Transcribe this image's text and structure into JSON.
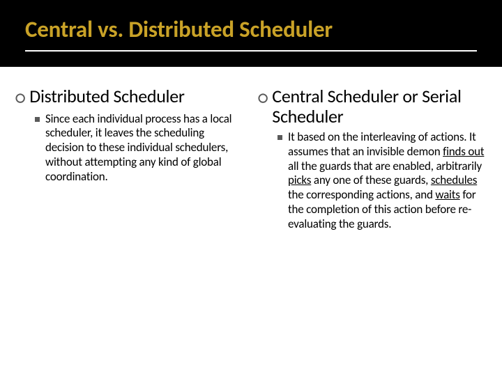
{
  "title": "Central vs. Distributed Scheduler",
  "left": {
    "heading": "Distributed Scheduler",
    "body_plain": "Since each individual process has a local scheduler, it leaves the scheduling decision to these individual schedulers, without attempting any kind of global coordination."
  },
  "right": {
    "heading": "Central Scheduler or Serial Scheduler",
    "body_segments": [
      {
        "t": "It based on the interleaving of actions. It assumes that an invisible demon "
      },
      {
        "t": "finds out",
        "u": true
      },
      {
        "t": " all the guards that are enabled, arbitrarily "
      },
      {
        "t": "picks",
        "u": true
      },
      {
        "t": " any one of these guards, "
      },
      {
        "t": "schedules",
        "u": true
      },
      {
        "t": " the corresponding actions, and "
      },
      {
        "t": "waits",
        "u": true
      },
      {
        "t": " for the completion of this action before re-evaluating the guards."
      }
    ]
  },
  "colors": {
    "title_bg": "#000000",
    "title_fg": "#c9a227",
    "underline": "#ffffff",
    "bullet": "#5a5a5a",
    "text": "#000000",
    "page_bg": "#ffffff"
  }
}
